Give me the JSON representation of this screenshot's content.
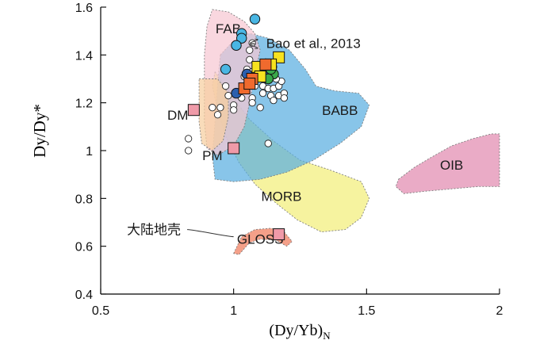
{
  "chart_data": {
    "type": "scatter",
    "xlabel_main": "(Dy/Yb)",
    "xlabel_sub": "N",
    "ylabel": "Dy/Dy*",
    "xlim": [
      0.5,
      2.0
    ],
    "ylim": [
      0.4,
      1.6
    ],
    "x_ticks": [
      "0.5",
      "1",
      "1.5",
      "2"
    ],
    "x_tick_values": [
      0.5,
      1.0,
      1.5,
      2.0
    ],
    "y_ticks": [
      "0.4",
      "0.6",
      "0.8",
      "1",
      "1.2",
      "1.4",
      "1.6"
    ],
    "y_tick_values": [
      0.4,
      0.6,
      0.8,
      1.0,
      1.2,
      1.4,
      1.6
    ],
    "fields": [
      {
        "name": "MORB",
        "color": "#f2ef7a",
        "label": "MORB",
        "label_at": [
          1.18,
          0.79
        ],
        "outline": [
          [
            0.93,
            1.33
          ],
          [
            0.98,
            1.25
          ],
          [
            1.06,
            1.13
          ],
          [
            1.15,
            1.04
          ],
          [
            1.25,
            0.96
          ],
          [
            1.36,
            0.92
          ],
          [
            1.48,
            0.87
          ],
          [
            1.51,
            0.8
          ],
          [
            1.48,
            0.72
          ],
          [
            1.42,
            0.67
          ],
          [
            1.33,
            0.66
          ],
          [
            1.24,
            0.71
          ],
          [
            1.16,
            0.78
          ],
          [
            1.08,
            0.86
          ],
          [
            1.02,
            0.95
          ],
          [
            0.97,
            1.06
          ],
          [
            0.94,
            1.17
          ],
          [
            0.92,
            1.27
          ]
        ]
      },
      {
        "name": "BABB",
        "color": "#5aaee0",
        "label": "BABB",
        "label_at": [
          1.4,
          1.15
        ],
        "outline": [
          [
            0.95,
            1.4
          ],
          [
            1.0,
            1.46
          ],
          [
            1.06,
            1.49
          ],
          [
            1.13,
            1.47
          ],
          [
            1.21,
            1.42
          ],
          [
            1.27,
            1.34
          ],
          [
            1.31,
            1.27
          ],
          [
            1.38,
            1.25
          ],
          [
            1.47,
            1.24
          ],
          [
            1.51,
            1.19
          ],
          [
            1.48,
            1.1
          ],
          [
            1.4,
            1.03
          ],
          [
            1.3,
            0.96
          ],
          [
            1.2,
            0.91
          ],
          [
            1.1,
            0.88
          ],
          [
            1.0,
            0.87
          ],
          [
            0.93,
            0.88
          ],
          [
            0.92,
            0.98
          ],
          [
            0.93,
            1.12
          ],
          [
            0.94,
            1.28
          ]
        ]
      },
      {
        "name": "FAB",
        "color": "#f7c7d3",
        "label": "FAB",
        "label_at": [
          0.98,
          1.49
        ],
        "outline": [
          [
            0.92,
            1.59
          ],
          [
            0.98,
            1.58
          ],
          [
            1.04,
            1.54
          ],
          [
            1.08,
            1.49
          ],
          [
            1.1,
            1.42
          ],
          [
            1.08,
            1.32
          ],
          [
            1.06,
            1.2
          ],
          [
            1.04,
            1.1
          ],
          [
            1.0,
            1.02
          ],
          [
            0.94,
            0.98
          ],
          [
            0.9,
            1.01
          ],
          [
            0.89,
            1.12
          ],
          [
            0.89,
            1.25
          ],
          [
            0.89,
            1.4
          ],
          [
            0.9,
            1.52
          ]
        ]
      },
      {
        "name": "PM-DM field",
        "color": "#f6cfa0",
        "label": "",
        "outline": [
          [
            0.87,
            1.3
          ],
          [
            0.94,
            1.3
          ],
          [
            0.98,
            1.24
          ],
          [
            0.98,
            1.14
          ],
          [
            0.96,
            1.04
          ],
          [
            0.92,
            1.0
          ],
          [
            0.88,
            1.03
          ],
          [
            0.87,
            1.12
          ],
          [
            0.87,
            1.22
          ]
        ]
      },
      {
        "name": "OIB",
        "color": "#e28bb0",
        "label": "OIB",
        "label_at": [
          1.82,
          0.92
        ],
        "outline": [
          [
            1.62,
            0.88
          ],
          [
            1.68,
            0.93
          ],
          [
            1.74,
            0.97
          ],
          [
            1.82,
            1.02
          ],
          [
            1.9,
            1.05
          ],
          [
            1.97,
            1.07
          ],
          [
            2.0,
            1.07
          ],
          [
            2.0,
            0.85
          ],
          [
            1.92,
            0.85
          ],
          [
            1.82,
            0.84
          ],
          [
            1.72,
            0.83
          ],
          [
            1.64,
            0.82
          ],
          [
            1.61,
            0.85
          ]
        ]
      },
      {
        "name": "GLOSS",
        "color": "#f07c5c",
        "label": "GLOSS",
        "label_at": [
          1.1,
          0.61
        ],
        "outline": [
          [
            1.0,
            0.57
          ],
          [
            1.03,
            0.64
          ],
          [
            1.08,
            0.67
          ],
          [
            1.14,
            0.675
          ],
          [
            1.19,
            0.66
          ],
          [
            1.22,
            0.62
          ],
          [
            1.2,
            0.6
          ],
          [
            1.16,
            0.625
          ],
          [
            1.1,
            0.63
          ],
          [
            1.06,
            0.615
          ],
          [
            1.02,
            0.565
          ]
        ]
      }
    ],
    "series": [
      {
        "name": "Bao et al., 2013",
        "marker": "open-circle",
        "points": [
          [
            1.07,
            1.45
          ],
          [
            1.06,
            1.42
          ],
          [
            1.06,
            1.38
          ],
          [
            1.05,
            1.34
          ],
          [
            1.07,
            1.33
          ],
          [
            1.04,
            1.31
          ],
          [
            1.09,
            1.31
          ],
          [
            1.11,
            1.3
          ],
          [
            1.13,
            1.33
          ],
          [
            1.15,
            1.35
          ],
          [
            1.12,
            1.37
          ],
          [
            1.09,
            1.36
          ],
          [
            1.06,
            1.29
          ],
          [
            1.08,
            1.27
          ],
          [
            1.11,
            1.27
          ],
          [
            1.13,
            1.26
          ],
          [
            1.15,
            1.26
          ],
          [
            1.17,
            1.27
          ],
          [
            1.18,
            1.29
          ],
          [
            1.16,
            1.3
          ],
          [
            1.14,
            1.23
          ],
          [
            1.17,
            1.23
          ],
          [
            1.19,
            1.24
          ],
          [
            1.19,
            1.22
          ],
          [
            1.15,
            1.21
          ],
          [
            1.11,
            1.24
          ],
          [
            1.07,
            1.22
          ],
          [
            0.97,
            1.27
          ],
          [
            0.98,
            1.23
          ],
          [
            1.0,
            1.19
          ],
          [
            1.0,
            1.17
          ],
          [
            1.03,
            1.22
          ],
          [
            0.92,
            1.18
          ],
          [
            0.95,
            1.18
          ],
          [
            0.94,
            1.15
          ],
          [
            0.83,
            1.05
          ],
          [
            0.83,
            1.0
          ],
          [
            1.13,
            1.03
          ],
          [
            1.07,
            1.2
          ],
          [
            1.1,
            1.18
          ]
        ]
      },
      {
        "name": "light blue circles",
        "marker": "filled-circle",
        "color": "#49b6e3",
        "points": [
          [
            1.08,
            1.55
          ],
          [
            1.03,
            1.49
          ],
          [
            1.03,
            1.47
          ],
          [
            1.01,
            1.44
          ],
          [
            0.97,
            1.34
          ]
        ]
      },
      {
        "name": "dark blue circles",
        "marker": "filled-circle",
        "color": "#2b5fae",
        "points": [
          [
            1.05,
            1.32
          ],
          [
            1.12,
            1.31
          ],
          [
            1.01,
            1.24
          ]
        ]
      },
      {
        "name": "green circles",
        "marker": "filled-circle",
        "color": "#3aa84a",
        "points": [
          [
            1.15,
            1.32
          ],
          [
            1.14,
            1.34
          ],
          [
            1.13,
            1.3
          ]
        ]
      },
      {
        "name": "yellow squares",
        "marker": "filled-square",
        "color": "#f7e21f",
        "points": [
          [
            1.17,
            1.39
          ],
          [
            1.09,
            1.35
          ],
          [
            1.14,
            1.36
          ],
          [
            1.1,
            1.31
          ]
        ]
      },
      {
        "name": "orange squares",
        "marker": "filled-square",
        "color": "#f06a2e",
        "points": [
          [
            1.04,
            1.26
          ],
          [
            1.07,
            1.3
          ],
          [
            1.12,
            1.36
          ],
          [
            1.06,
            1.28
          ]
        ]
      },
      {
        "name": "references",
        "marker": "filled-square",
        "color": "#ef9aa8",
        "points": [
          [
            0.85,
            1.17
          ],
          [
            1.0,
            1.01
          ],
          [
            1.17,
            0.65
          ]
        ]
      }
    ],
    "annotations": [
      {
        "text": "DM",
        "at": [
          0.79,
          1.13
        ]
      },
      {
        "text": "PM",
        "at": [
          0.92,
          0.96
        ]
      },
      {
        "text": "Bao et al., 2013",
        "at": [
          1.3,
          1.43
        ],
        "arrow_to": [
          1.08,
          1.44
        ]
      },
      {
        "text": "大陆地壳",
        "at": [
          0.7,
          0.65
        ],
        "arrow_to": [
          1.0,
          0.64
        ]
      }
    ]
  }
}
